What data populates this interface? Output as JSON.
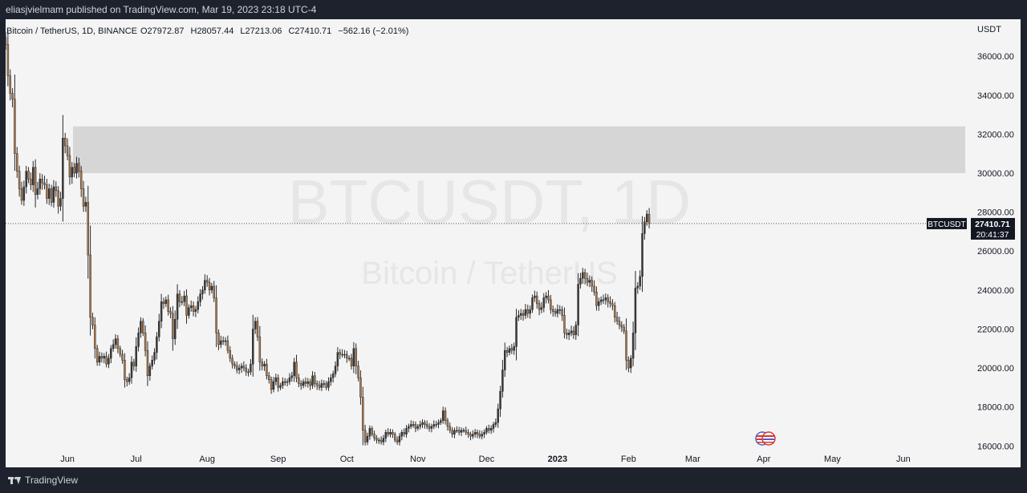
{
  "header": {
    "published_line": "eliasjvielmam published on TradingView.com, Mar 19, 2023 23:18 UTC-4"
  },
  "footer": {
    "brand": "TradingView"
  },
  "colors": {
    "up": "#3a3a3a",
    "down": "#b07a4a",
    "background": "#f4f4f4",
    "zone": "#d6d6d6",
    "watermark": "#e6e6e6"
  },
  "chart_data": {
    "type": "candlestick",
    "symbol_line": "Bitcoin / TetherUS, 1D, BINANCE",
    "ohlc": {
      "open_label": "O27972.87",
      "high_label": "H28057.44",
      "low_label": "L27213.06",
      "close_label": "C27410.71",
      "change_label": "−562.16 (−2.01%)"
    },
    "watermark": {
      "line1": "BTCUSDT, 1D",
      "line2": "Bitcoin / TetherUS"
    },
    "y_axis": {
      "unit": "USDT",
      "ticks": [
        16000,
        18000,
        20000,
        22000,
        24000,
        26000,
        28000,
        30000,
        32000,
        34000,
        36000
      ],
      "tick_labels": [
        "16000.00",
        "18000.00",
        "20000.00",
        "22000.00",
        "24000.00",
        "26000.00",
        "28000.00",
        "30000.00",
        "32000.00",
        "34000.00",
        "36000.00"
      ],
      "range": [
        14900,
        37900
      ]
    },
    "x_axis": {
      "range": [
        "2022-05-05",
        "2023-06-28"
      ],
      "ticks": [
        {
          "date": "2022-06-01",
          "label": "Jun",
          "bold": false
        },
        {
          "date": "2022-07-01",
          "label": "Jul",
          "bold": false
        },
        {
          "date": "2022-08-01",
          "label": "Aug",
          "bold": false
        },
        {
          "date": "2022-09-01",
          "label": "Sep",
          "bold": false
        },
        {
          "date": "2022-10-01",
          "label": "Oct",
          "bold": false
        },
        {
          "date": "2022-11-01",
          "label": "Nov",
          "bold": false
        },
        {
          "date": "2022-12-01",
          "label": "Dec",
          "bold": false
        },
        {
          "date": "2023-01-01",
          "label": "2023",
          "bold": true
        },
        {
          "date": "2023-02-01",
          "label": "Feb",
          "bold": false
        },
        {
          "date": "2023-03-01",
          "label": "Mar",
          "bold": false
        },
        {
          "date": "2023-04-01",
          "label": "Apr",
          "bold": false
        },
        {
          "date": "2023-05-01",
          "label": "May",
          "bold": false
        },
        {
          "date": "2023-06-01",
          "label": "Jun",
          "bold": false
        }
      ]
    },
    "zone": {
      "low": 30000,
      "high": 32400
    },
    "last_price": {
      "value": 27410.71,
      "symbol_tag": "BTCUSDT",
      "price_tag": "27410.71",
      "countdown": "20:41:37"
    },
    "series_start": "2022-05-05",
    "closes": [
      36600,
      35000,
      34100,
      33800,
      31000,
      30100,
      29200,
      28600,
      29300,
      30100,
      29700,
      29400,
      30300,
      28900,
      29200,
      29700,
      29500,
      29400,
      28700,
      29200,
      28500,
      29300,
      29100,
      28300,
      28700,
      31800,
      31400,
      30900,
      29800,
      30300,
      30000,
      30500,
      30100,
      29200,
      28300,
      28500,
      25800,
      22600,
      22200,
      21000,
      20300,
      20600,
      20500,
      20600,
      20200,
      20500,
      21000,
      21200,
      21500,
      21000,
      20700,
      20400,
      19400,
      19300,
      19500,
      20300,
      20100,
      21100,
      21800,
      22400,
      21800,
      20900,
      19600,
      20100,
      20400,
      20800,
      21600,
      22400,
      23400,
      23300,
      23500,
      22900,
      22800,
      21500,
      22500,
      23800,
      23400,
      23400,
      23700,
      22700,
      23100,
      23200,
      22900,
      23000,
      23400,
      23800,
      24000,
      24500,
      24400,
      24000,
      24200,
      23600,
      21800,
      21200,
      21400,
      21400,
      21400,
      20900,
      20500,
      20200,
      20100,
      19900,
      20000,
      20100,
      20000,
      19800,
      19800,
      20200,
      22000,
      22400,
      21600,
      20300,
      20100,
      20200,
      19600,
      19400,
      18900,
      19300,
      19500,
      19000,
      19100,
      19300,
      19300,
      19300,
      19500,
      19600,
      20300,
      19500,
      19200,
      19100,
      19300,
      19200,
      19300,
      19100,
      19600,
      19200,
      19100,
      19000,
      19200,
      19200,
      19000,
      19300,
      19500,
      19700,
      20100,
      20800,
      20700,
      20700,
      20700,
      20500,
      20500,
      20100,
      21000,
      20100,
      19500,
      18500,
      16800,
      16200,
      16500,
      16900,
      16600,
      16400,
      16300,
      16300,
      16200,
      16400,
      16700,
      16600,
      16700,
      16600,
      16300,
      16200,
      16500,
      16700,
      16600,
      16900,
      17000,
      17100,
      17100,
      16900,
      17000,
      17100,
      17200,
      17100,
      17000,
      16900,
      17000,
      17100,
      17100,
      17200,
      17300,
      17800,
      17300,
      17000,
      16800,
      16600,
      16800,
      16800,
      16700,
      16800,
      16800,
      16700,
      16600,
      16500,
      16600,
      16700,
      16600,
      16500,
      16600,
      16700,
      16900,
      16800,
      16900,
      17100,
      17200,
      17900,
      18800,
      19900,
      20900,
      20800,
      21000,
      20900,
      21100,
      22600,
      22700,
      22800,
      22700,
      23000,
      22800,
      23000,
      23600,
      23700,
      23300,
      23000,
      23100,
      23600,
      23700,
      23500,
      23000,
      22900,
      22800,
      23000,
      23000,
      22700,
      21800,
      21700,
      21800,
      21900,
      21700,
      22200,
      24300,
      24600,
      24900,
      24600,
      24400,
      24500,
      24200,
      23900,
      23200,
      23400,
      23500,
      23500,
      23600,
      23400,
      23300,
      23200,
      22600,
      22400,
      22200,
      22100,
      21900,
      20400,
      20000,
      20500,
      21800,
      24100,
      24200,
      24700,
      26900,
      27500,
      27900,
      27410.71
    ],
    "price_scale_note": "Daily BTCUSDT candles approximated from chart; wicks drawn proportionally"
  }
}
